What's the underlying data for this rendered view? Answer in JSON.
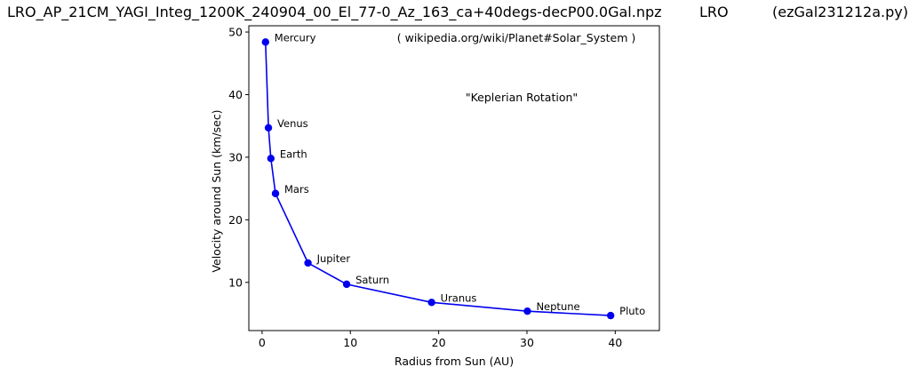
{
  "header": {
    "filename": "LRO_AP_21CM_YAGI_Integ_1200K_240904_00_El_77-0_Az_163_ca+40degs-decP00.0Gal.npz",
    "site": "LRO",
    "script": "(ezGal231212a.py)"
  },
  "chart_data": {
    "type": "line",
    "xlabel": "Radius from Sun (AU)",
    "ylabel": "Velocity around Sun (km/sec)",
    "xlim": [
      -1.5,
      45
    ],
    "ylim": [
      2.3,
      51
    ],
    "xticks": [
      0,
      10,
      20,
      30,
      40
    ],
    "yticks": [
      10,
      20,
      30,
      40,
      50
    ],
    "grid": false,
    "color": "#0000ee",
    "annotations": [
      "( wikipedia.org/wiki/Planet#Solar_System )",
      "\"Keplerian Rotation\""
    ],
    "points": [
      {
        "label": "Mercury",
        "x": 0.39,
        "y": 48.4
      },
      {
        "label": "Venus",
        "x": 0.72,
        "y": 34.7
      },
      {
        "label": "Earth",
        "x": 1.0,
        "y": 29.8
      },
      {
        "label": "Mars",
        "x": 1.52,
        "y": 24.2
      },
      {
        "label": "Jupiter",
        "x": 5.2,
        "y": 13.1
      },
      {
        "label": "Saturn",
        "x": 9.58,
        "y": 9.7
      },
      {
        "label": "Uranus",
        "x": 19.2,
        "y": 6.8
      },
      {
        "label": "Neptune",
        "x": 30.05,
        "y": 5.4
      },
      {
        "label": "Pluto",
        "x": 39.48,
        "y": 4.7
      }
    ]
  }
}
